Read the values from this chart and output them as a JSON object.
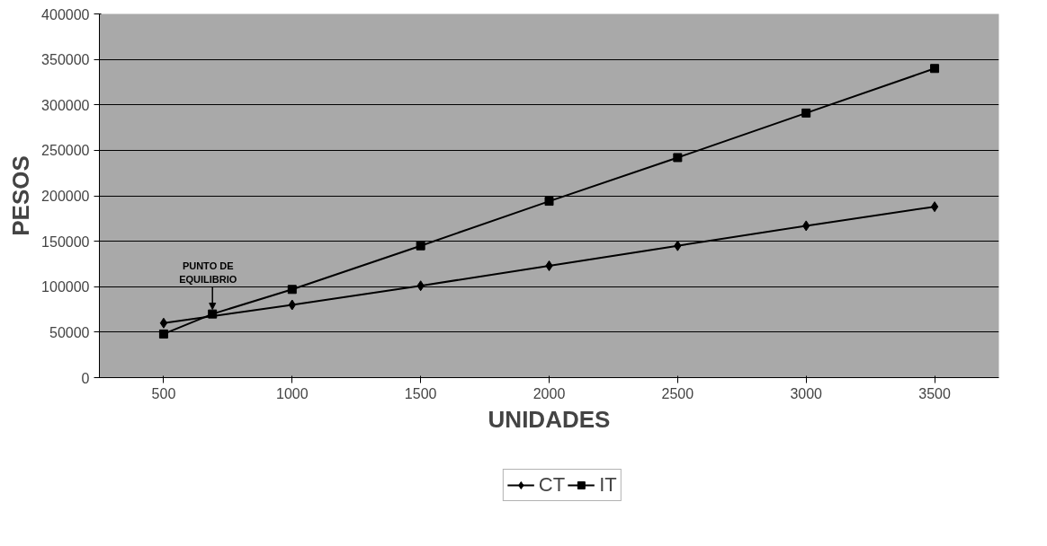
{
  "chart_data": {
    "type": "line",
    "xlabel": "UNIDADES",
    "ylabel": "PESOS",
    "xlim": [
      250,
      3750
    ],
    "xticks": [
      500,
      1000,
      1500,
      2000,
      2500,
      3000,
      3500
    ],
    "ylim": [
      0,
      400000
    ],
    "yticks": [
      0,
      50000,
      100000,
      150000,
      200000,
      250000,
      300000,
      350000,
      400000
    ],
    "series": [
      {
        "name": "CT",
        "color": "#000000",
        "marker": "diamond",
        "x": [
          500,
          1000,
          1500,
          2000,
          2500,
          3000,
          3500
        ],
        "values": [
          60000,
          80000,
          101000,
          123000,
          145000,
          167000,
          188000
        ]
      },
      {
        "name": "IT",
        "color": "#000000",
        "marker": "square",
        "x": [
          500,
          690,
          1000,
          1500,
          2000,
          2500,
          3000,
          3500
        ],
        "values": [
          48000,
          70000,
          97000,
          145000,
          194000,
          242000,
          291000,
          340000
        ]
      }
    ],
    "annotations": [
      {
        "text": "PUNTO DE\nEQUILIBRIO",
        "x": 690,
        "y": 70000
      }
    ],
    "grid": "y",
    "legend": "bottom",
    "line_style": "solid"
  }
}
